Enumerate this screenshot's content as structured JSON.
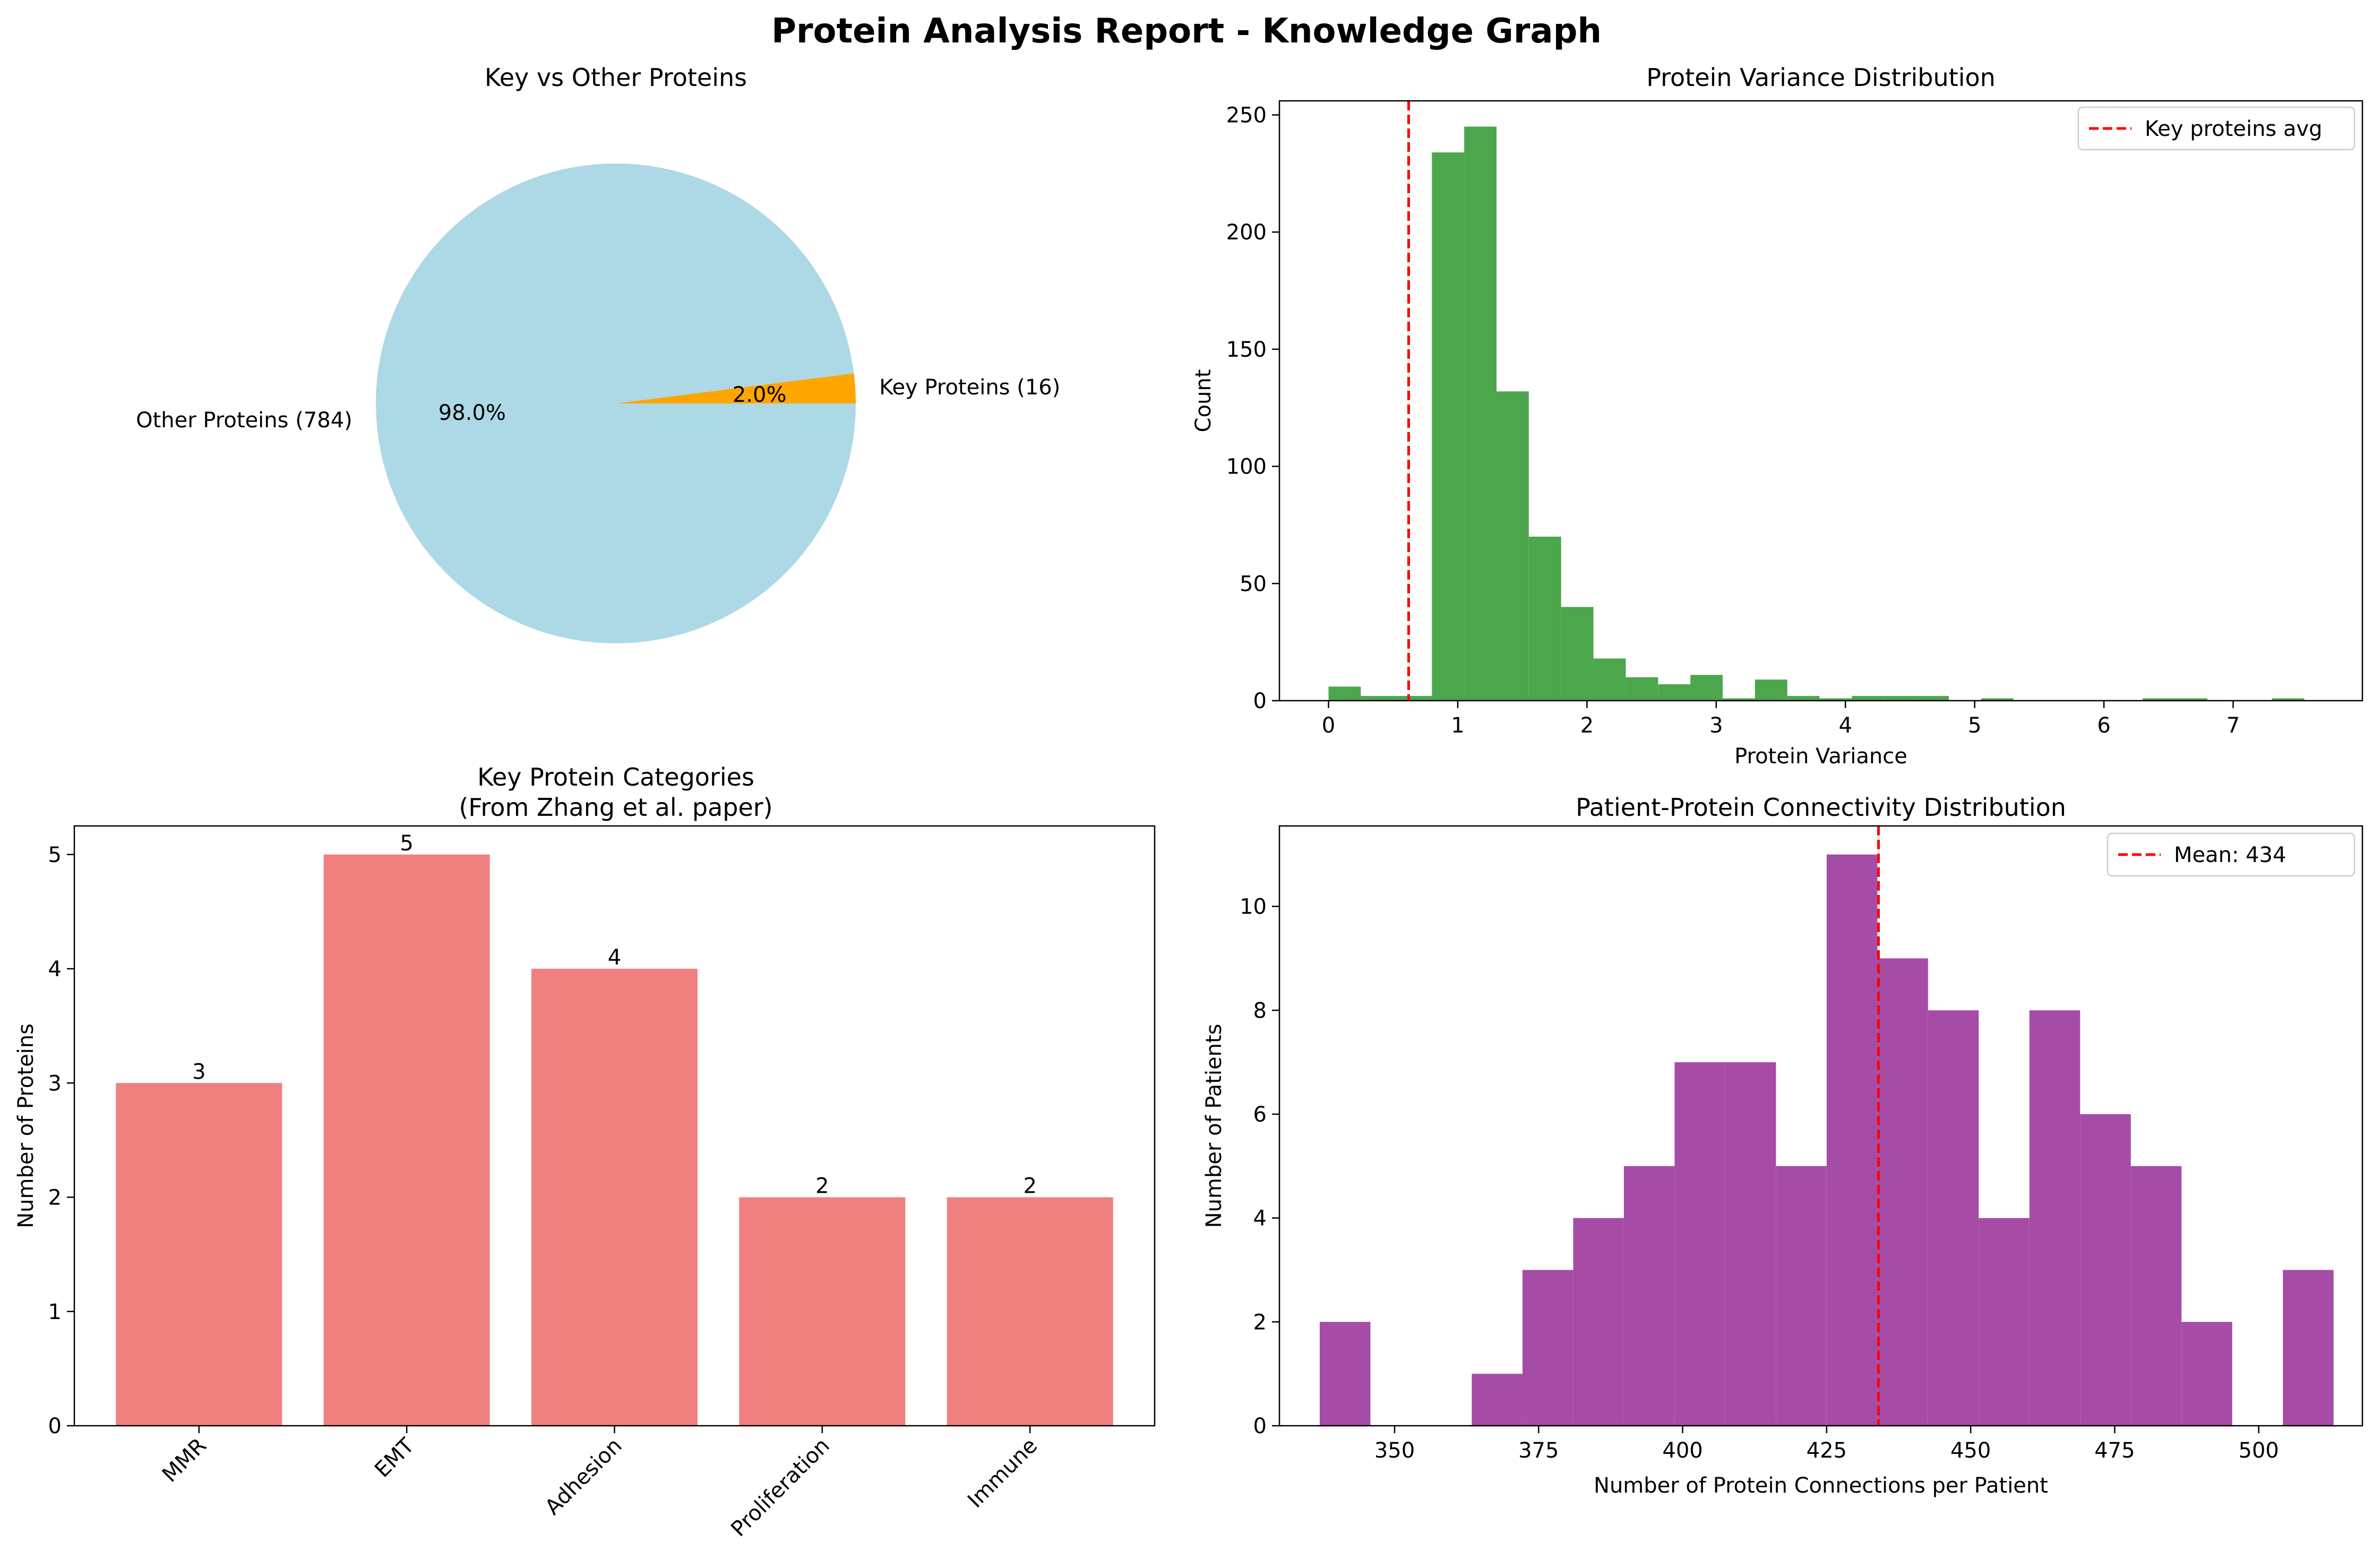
{
  "figure": {
    "title": "Protein Analysis Report - Knowledge Graph"
  },
  "chart_data": [
    {
      "id": "pie",
      "type": "pie",
      "title": "Key vs Other Proteins",
      "slices": [
        {
          "label": "Key Proteins (16)",
          "value": 16,
          "pct_label": "2.0%",
          "color": "#ffa500"
        },
        {
          "label": "Other Proteins (784)",
          "value": 784,
          "pct_label": "98.0%",
          "color": "#add8e6"
        }
      ]
    },
    {
      "id": "variance",
      "type": "bar",
      "title": "Protein Variance Distribution",
      "xlabel": "Protein Variance",
      "ylabel": "Count",
      "xlim": [
        -0.38,
        8.0
      ],
      "ylim": [
        0,
        256
      ],
      "xticks": [
        0,
        1,
        2,
        3,
        4,
        5,
        6,
        7
      ],
      "yticks": [
        0,
        50,
        100,
        150,
        200,
        250
      ],
      "bar_color": "#4ca64c",
      "bins": [
        [
          0.0,
          0.25,
          6
        ],
        [
          0.25,
          0.5,
          2
        ],
        [
          0.5,
          0.8,
          2
        ],
        [
          0.8,
          1.05,
          234
        ],
        [
          1.05,
          1.3,
          245
        ],
        [
          1.3,
          1.55,
          132
        ],
        [
          1.55,
          1.8,
          70
        ],
        [
          1.8,
          2.05,
          40
        ],
        [
          2.05,
          2.3,
          18
        ],
        [
          2.3,
          2.55,
          10
        ],
        [
          2.55,
          2.8,
          7
        ],
        [
          2.8,
          3.05,
          11
        ],
        [
          3.05,
          3.3,
          1
        ],
        [
          3.3,
          3.55,
          9
        ],
        [
          3.55,
          3.8,
          2
        ],
        [
          3.8,
          4.05,
          1
        ],
        [
          4.05,
          4.3,
          2
        ],
        [
          4.3,
          4.55,
          2
        ],
        [
          4.55,
          4.8,
          2
        ],
        [
          4.8,
          5.05,
          0
        ],
        [
          5.05,
          5.3,
          1
        ],
        [
          5.3,
          5.55,
          0
        ],
        [
          5.55,
          5.8,
          0
        ],
        [
          5.8,
          6.05,
          0
        ],
        [
          6.05,
          6.3,
          0
        ],
        [
          6.3,
          6.55,
          1
        ],
        [
          6.55,
          6.8,
          1
        ],
        [
          6.8,
          7.05,
          0
        ],
        [
          7.05,
          7.3,
          0
        ],
        [
          7.3,
          7.55,
          1
        ]
      ],
      "vline": {
        "x": 0.62,
        "label": "Key proteins avg",
        "color": "#ff0000"
      },
      "legend_position": "upper right"
    },
    {
      "id": "categories",
      "type": "bar",
      "title": "Key Protein Categories",
      "subtitle": "(From Zhang et al. paper)",
      "ylabel": "Number of Proteins",
      "ylim": [
        0,
        5.25
      ],
      "yticks": [
        0,
        1,
        2,
        3,
        4,
        5
      ],
      "bar_color": "#f08080",
      "categories": [
        "MMR",
        "EMT",
        "Adhesion",
        "Proliferation",
        "Immune"
      ],
      "values": [
        3,
        5,
        4,
        2,
        2
      ]
    },
    {
      "id": "connectivity",
      "type": "bar",
      "title": "Patient-Protein Connectivity Distribution",
      "xlabel": "Number of Protein Connections per Patient",
      "ylabel": "Number of Patients",
      "xlim": [
        330,
        518
      ],
      "ylim": [
        0,
        11.55
      ],
      "xticks": [
        350,
        375,
        400,
        425,
        450,
        475,
        500
      ],
      "yticks": [
        0,
        2,
        4,
        6,
        8,
        10
      ],
      "bar_color": "#a64ca6",
      "bins": [
        [
          337,
          345.8,
          2
        ],
        [
          345.8,
          354.6,
          0
        ],
        [
          354.6,
          363.4,
          0
        ],
        [
          363.4,
          372.2,
          1
        ],
        [
          372.2,
          381,
          3
        ],
        [
          381,
          389.8,
          4
        ],
        [
          389.8,
          398.6,
          5
        ],
        [
          398.6,
          407.4,
          7
        ],
        [
          407.4,
          416.2,
          7
        ],
        [
          416.2,
          425,
          5
        ],
        [
          425,
          433.8,
          11
        ],
        [
          433.8,
          442.6,
          9
        ],
        [
          442.6,
          451.4,
          8
        ],
        [
          451.4,
          460.2,
          4
        ],
        [
          460.2,
          469,
          8
        ],
        [
          469,
          477.8,
          6
        ],
        [
          477.8,
          486.6,
          5
        ],
        [
          486.6,
          495.4,
          2
        ],
        [
          495.4,
          504.2,
          0
        ],
        [
          504.2,
          513,
          3
        ]
      ],
      "vline": {
        "x": 434,
        "label": "Mean: 434",
        "color": "#ff0000"
      },
      "legend_position": "upper right"
    }
  ]
}
